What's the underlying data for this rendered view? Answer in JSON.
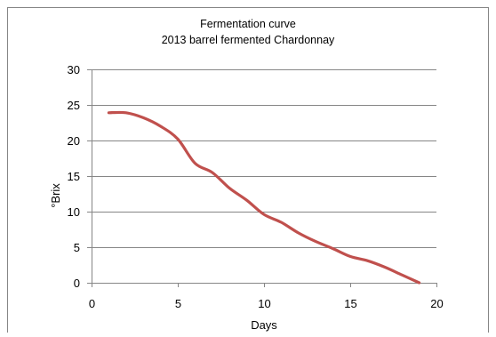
{
  "chart_data": {
    "type": "line",
    "title": "Fermentation curve",
    "subtitle": "2013 barrel fermented Chardonnay",
    "xlabel": "Days",
    "ylabel": "°Brix",
    "xlim": [
      0,
      20
    ],
    "ylim": [
      0,
      30
    ],
    "x_ticks": [
      "0",
      "5",
      "10",
      "15",
      "20"
    ],
    "y_ticks": [
      "0",
      "5",
      "10",
      "15",
      "20",
      "25",
      "30"
    ],
    "grid": "horizontal",
    "legend": "none",
    "series": [
      {
        "color": "#c0504d",
        "x": [
          1,
          2,
          3,
          4,
          5,
          6,
          7,
          8,
          9,
          10,
          11,
          12,
          13,
          14,
          15,
          16,
          17,
          18,
          19
        ],
        "y": [
          23.9,
          23.9,
          23.2,
          22.0,
          20.2,
          16.8,
          15.5,
          13.3,
          11.6,
          9.6,
          8.5,
          7.0,
          5.8,
          4.8,
          3.7,
          3.1,
          2.2,
          1.1,
          0.0
        ]
      }
    ]
  }
}
